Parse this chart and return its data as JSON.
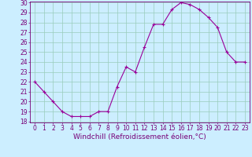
{
  "x": [
    0,
    1,
    2,
    3,
    4,
    5,
    6,
    7,
    8,
    9,
    10,
    11,
    12,
    13,
    14,
    15,
    16,
    17,
    18,
    19,
    20,
    21,
    22,
    23
  ],
  "y": [
    22,
    21,
    20,
    19,
    18.5,
    18.5,
    18.5,
    19,
    19,
    21.5,
    23.5,
    23,
    25.5,
    27.8,
    27.8,
    29.3,
    30,
    29.8,
    29.3,
    28.5,
    27.5,
    25,
    24,
    24
  ],
  "line_color": "#990099",
  "marker": "+",
  "marker_size": 3,
  "marker_linewidth": 0.8,
  "bg_color": "#cceeff",
  "grid_color": "#99ccbb",
  "xlabel": "Windchill (Refroidissement éolien,°C)",
  "xlabel_fontsize": 6.5,
  "ylim": [
    18,
    30
  ],
  "xlim": [
    -0.5,
    23.5
  ],
  "yticks": [
    18,
    19,
    20,
    21,
    22,
    23,
    24,
    25,
    26,
    27,
    28,
    29,
    30
  ],
  "xticks": [
    0,
    1,
    2,
    3,
    4,
    5,
    6,
    7,
    8,
    9,
    10,
    11,
    12,
    13,
    14,
    15,
    16,
    17,
    18,
    19,
    20,
    21,
    22,
    23
  ],
  "tick_fontsize": 5.5,
  "tick_color": "#770077",
  "spine_color": "#770077",
  "line_width": 0.8
}
